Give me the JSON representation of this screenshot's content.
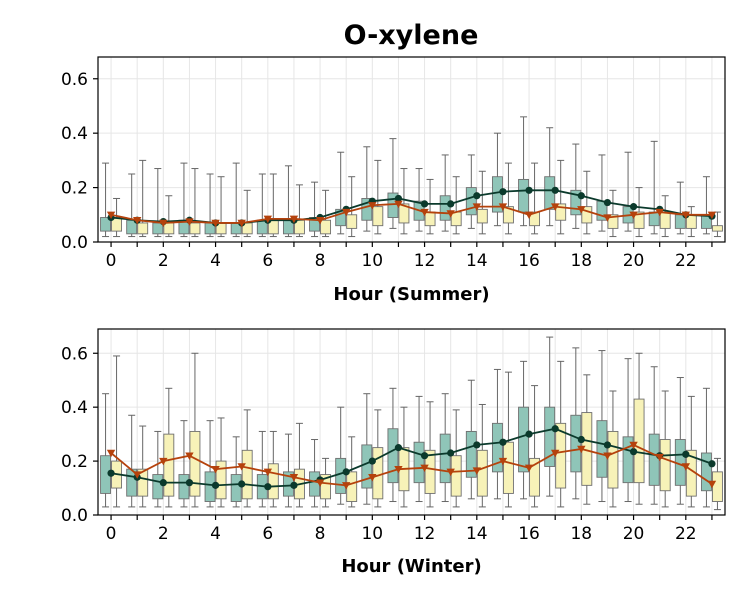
{
  "chart_data": {
    "title": "O-xylene",
    "type": "box",
    "colors": {
      "series_a_box": "#8fc5b8",
      "series_a_line": "#0b3a2c",
      "series_b_box": "#f7f2b8",
      "series_b_line": "#b5420c",
      "whisker": "#666666"
    },
    "panels": [
      {
        "xlabel": "Hour (Summer)",
        "ylim": [
          0,
          0.68
        ],
        "yticks": [
          "0.0",
          "0.2",
          "0.4",
          "0.6"
        ],
        "xticks": [
          "0",
          "2",
          "4",
          "6",
          "8",
          "10",
          "12",
          "14",
          "16",
          "18",
          "20",
          "22"
        ],
        "grid": true,
        "series": [
          {
            "marker": "circle",
            "hours": [
              0,
              1,
              2,
              3,
              4,
              5,
              6,
              7,
              8,
              9,
              10,
              11,
              12,
              13,
              14,
              15,
              16,
              17,
              18,
              19,
              20,
              21,
              22,
              23
            ],
            "median_line": [
              0.09,
              0.08,
              0.075,
              0.08,
              0.07,
              0.07,
              0.08,
              0.08,
              0.09,
              0.12,
              0.15,
              0.16,
              0.14,
              0.14,
              0.17,
              0.185,
              0.19,
              0.19,
              0.17,
              0.145,
              0.13,
              0.12,
              0.1,
              0.095
            ],
            "box_q1": [
              0.04,
              0.03,
              0.03,
              0.03,
              0.03,
              0.03,
              0.03,
              0.03,
              0.04,
              0.06,
              0.08,
              0.09,
              0.08,
              0.08,
              0.1,
              0.11,
              0.11,
              0.12,
              0.1,
              0.08,
              0.07,
              0.06,
              0.05,
              0.05
            ],
            "box_q3": [
              0.09,
              0.08,
              0.07,
              0.08,
              0.07,
              0.07,
              0.08,
              0.08,
              0.09,
              0.12,
              0.16,
              0.18,
              0.15,
              0.17,
              0.2,
              0.24,
              0.23,
              0.24,
              0.19,
              0.15,
              0.13,
              0.11,
              0.1,
              0.1
            ],
            "whisker_low": [
              0.02,
              0.02,
              0.02,
              0.02,
              0.02,
              0.02,
              0.02,
              0.02,
              0.02,
              0.03,
              0.04,
              0.05,
              0.04,
              0.04,
              0.05,
              0.06,
              0.06,
              0.06,
              0.05,
              0.04,
              0.04,
              0.03,
              0.03,
              0.03
            ],
            "whisker_high": [
              0.29,
              0.25,
              0.27,
              0.29,
              0.25,
              0.29,
              0.25,
              0.28,
              0.22,
              0.33,
              0.35,
              0.38,
              0.27,
              0.32,
              0.32,
              0.4,
              0.46,
              0.42,
              0.36,
              0.32,
              0.33,
              0.37,
              0.22,
              0.24
            ]
          },
          {
            "marker": "triangle-down",
            "hours": [
              0,
              1,
              2,
              3,
              4,
              5,
              6,
              7,
              8,
              9,
              10,
              11,
              12,
              13,
              14,
              15,
              16,
              17,
              18,
              19,
              20,
              21,
              22,
              23
            ],
            "median_line": [
              0.1,
              0.08,
              0.07,
              0.075,
              0.07,
              0.07,
              0.085,
              0.085,
              0.08,
              0.11,
              0.135,
              0.14,
              0.11,
              0.105,
              0.13,
              0.13,
              0.1,
              0.13,
              0.12,
              0.09,
              0.1,
              0.11,
              0.1,
              0.1
            ],
            "box_q1": [
              0.04,
              0.03,
              0.03,
              0.03,
              0.03,
              0.03,
              0.03,
              0.03,
              0.03,
              0.05,
              0.06,
              0.07,
              0.06,
              0.06,
              0.07,
              0.07,
              0.06,
              0.08,
              0.07,
              0.05,
              0.05,
              0.05,
              0.05,
              0.04
            ],
            "box_q3": [
              0.09,
              0.07,
              0.07,
              0.07,
              0.07,
              0.07,
              0.08,
              0.08,
              0.08,
              0.1,
              0.13,
              0.14,
              0.11,
              0.11,
              0.12,
              0.13,
              0.11,
              0.14,
              0.13,
              0.1,
              0.11,
              0.11,
              0.1,
              0.06
            ],
            "whisker_low": [
              0.02,
              0.02,
              0.02,
              0.02,
              0.02,
              0.02,
              0.02,
              0.02,
              0.02,
              0.02,
              0.03,
              0.03,
              0.03,
              0.03,
              0.03,
              0.03,
              0.03,
              0.03,
              0.03,
              0.02,
              0.02,
              0.02,
              0.02,
              0.02
            ],
            "whisker_high": [
              0.16,
              0.3,
              0.17,
              0.27,
              0.24,
              0.19,
              0.25,
              0.21,
              0.19,
              0.24,
              0.3,
              0.27,
              0.23,
              0.24,
              0.26,
              0.29,
              0.29,
              0.3,
              0.26,
              0.19,
              0.2,
              0.17,
              0.13,
              0.11
            ]
          }
        ]
      },
      {
        "xlabel": "Hour (Winter)",
        "ylim": [
          0,
          0.69
        ],
        "yticks": [
          "0.0",
          "0.2",
          "0.4",
          "0.6"
        ],
        "xticks": [
          "0",
          "2",
          "4",
          "6",
          "8",
          "10",
          "12",
          "14",
          "16",
          "18",
          "20",
          "22"
        ],
        "grid": true,
        "series": [
          {
            "marker": "circle",
            "hours": [
              0,
              1,
              2,
              3,
              4,
              5,
              6,
              7,
              8,
              9,
              10,
              11,
              12,
              13,
              14,
              15,
              16,
              17,
              18,
              19,
              20,
              21,
              22,
              23
            ],
            "median_line": [
              0.155,
              0.14,
              0.12,
              0.12,
              0.11,
              0.115,
              0.105,
              0.11,
              0.13,
              0.16,
              0.2,
              0.25,
              0.22,
              0.23,
              0.26,
              0.27,
              0.3,
              0.32,
              0.28,
              0.26,
              0.235,
              0.22,
              0.225,
              0.19
            ],
            "box_q1": [
              0.08,
              0.07,
              0.06,
              0.06,
              0.05,
              0.05,
              0.06,
              0.07,
              0.07,
              0.08,
              0.1,
              0.12,
              0.12,
              0.12,
              0.14,
              0.16,
              0.16,
              0.18,
              0.16,
              0.14,
              0.12,
              0.11,
              0.11,
              0.09
            ],
            "box_q3": [
              0.22,
              0.17,
              0.15,
              0.15,
              0.16,
              0.15,
              0.15,
              0.16,
              0.16,
              0.21,
              0.26,
              0.32,
              0.27,
              0.3,
              0.31,
              0.34,
              0.4,
              0.4,
              0.37,
              0.35,
              0.29,
              0.3,
              0.28,
              0.23
            ],
            "whisker_low": [
              0.03,
              0.03,
              0.03,
              0.03,
              0.03,
              0.03,
              0.03,
              0.03,
              0.03,
              0.04,
              0.04,
              0.05,
              0.05,
              0.05,
              0.06,
              0.06,
              0.06,
              0.07,
              0.06,
              0.05,
              0.05,
              0.04,
              0.04,
              0.03
            ],
            "whisker_high": [
              0.45,
              0.37,
              0.31,
              0.35,
              0.35,
              0.29,
              0.31,
              0.3,
              0.28,
              0.4,
              0.45,
              0.47,
              0.44,
              0.45,
              0.5,
              0.54,
              0.57,
              0.66,
              0.62,
              0.61,
              0.58,
              0.55,
              0.51,
              0.47
            ]
          },
          {
            "marker": "triangle-down",
            "hours": [
              0,
              1,
              2,
              3,
              4,
              5,
              6,
              7,
              8,
              9,
              10,
              11,
              12,
              13,
              14,
              15,
              16,
              17,
              18,
              19,
              20,
              21,
              22,
              23
            ],
            "median_line": [
              0.23,
              0.15,
              0.2,
              0.22,
              0.17,
              0.18,
              0.16,
              0.14,
              0.12,
              0.11,
              0.14,
              0.17,
              0.175,
              0.16,
              0.165,
              0.2,
              0.175,
              0.23,
              0.245,
              0.22,
              0.26,
              0.215,
              0.18,
              0.115
            ],
            "box_q1": [
              0.1,
              0.07,
              0.07,
              0.07,
              0.06,
              0.06,
              0.06,
              0.06,
              0.06,
              0.05,
              0.06,
              0.09,
              0.08,
              0.07,
              0.07,
              0.08,
              0.07,
              0.1,
              0.11,
              0.1,
              0.12,
              0.09,
              0.07,
              0.05
            ],
            "box_q3": [
              0.2,
              0.17,
              0.3,
              0.31,
              0.2,
              0.24,
              0.19,
              0.17,
              0.15,
              0.16,
              0.25,
              0.25,
              0.24,
              0.22,
              0.24,
              0.27,
              0.21,
              0.34,
              0.38,
              0.31,
              0.43,
              0.28,
              0.24,
              0.16
            ],
            "whisker_low": [
              0.03,
              0.03,
              0.03,
              0.03,
              0.03,
              0.03,
              0.03,
              0.03,
              0.03,
              0.03,
              0.03,
              0.03,
              0.03,
              0.03,
              0.03,
              0.03,
              0.03,
              0.03,
              0.04,
              0.03,
              0.04,
              0.03,
              0.03,
              0.02
            ],
            "whisker_high": [
              0.59,
              0.33,
              0.47,
              0.6,
              0.36,
              0.39,
              0.31,
              0.34,
              0.21,
              0.29,
              0.39,
              0.4,
              0.42,
              0.39,
              0.41,
              0.53,
              0.48,
              0.57,
              0.52,
              0.46,
              0.6,
              0.46,
              0.44,
              0.21
            ]
          }
        ]
      }
    ]
  }
}
